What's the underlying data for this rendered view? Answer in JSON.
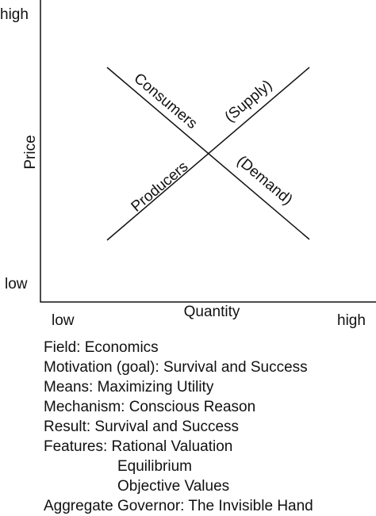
{
  "diagram": {
    "y_axis": {
      "label": "Price",
      "high": "high",
      "low": "low"
    },
    "x_axis": {
      "label": "Quantity",
      "low": "low",
      "high": "high"
    },
    "lines": [
      {
        "labels": [
          "Consumers",
          "(Demand)"
        ]
      },
      {
        "labels": [
          "Producers",
          "(Supply)"
        ]
      }
    ]
  },
  "notes": {
    "lines_before": [
      "Field: Economics",
      "Motivation (goal): Survival and Success",
      "Means: Maximizing Utility",
      "Mechanism: Conscious Reason",
      "Result: Survival and Success"
    ],
    "features": [
      "Features: Rational Valuation",
      "Equilibrium",
      "Objective Values"
    ],
    "lines_after": [
      "Aggregate Governor: The Invisible Hand"
    ]
  }
}
